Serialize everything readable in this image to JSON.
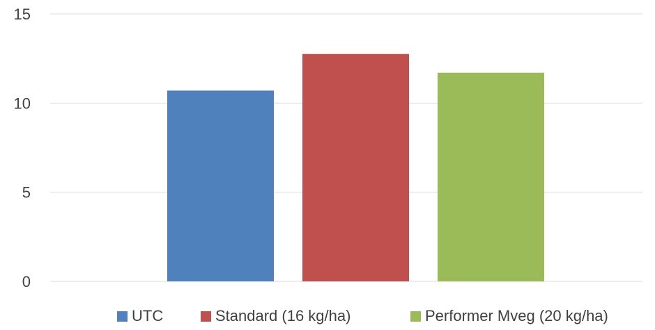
{
  "chart_data": {
    "type": "bar",
    "categories": [
      ""
    ],
    "series": [
      {
        "name": "UTC",
        "values": [
          10.7
        ],
        "color": "#4F81BD"
      },
      {
        "name": "Standard (16 kg/ha)",
        "values": [
          12.75
        ],
        "color": "#C0504D"
      },
      {
        "name": "Performer Mveg (20 kg/ha)",
        "values": [
          11.7
        ],
        "color": "#9BBB59"
      }
    ],
    "ylim": [
      0,
      15
    ],
    "yticks": [
      "0",
      "5",
      "10",
      "15"
    ],
    "grid": true,
    "legend": "bottom"
  }
}
